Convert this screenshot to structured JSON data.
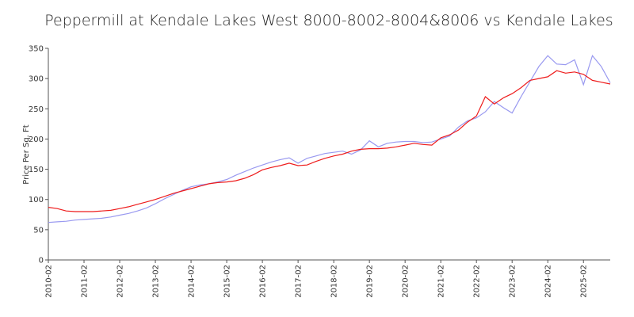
{
  "chart_data": {
    "type": "line",
    "title": "Peppermill at Kendale Lakes West 8000-8002-8004&8006 vs Kendale Lakes",
    "y_label": "Price Per Sq. Ft",
    "x": [
      "2010-02",
      "2010-05",
      "2010-08",
      "2010-11",
      "2011-02",
      "2011-05",
      "2011-08",
      "2011-11",
      "2012-02",
      "2012-05",
      "2012-08",
      "2012-11",
      "2013-02",
      "2013-05",
      "2013-08",
      "2013-11",
      "2014-02",
      "2014-05",
      "2014-08",
      "2014-11",
      "2015-02",
      "2015-05",
      "2015-08",
      "2015-11",
      "2016-02",
      "2016-05",
      "2016-08",
      "2016-11",
      "2017-02",
      "2017-05",
      "2017-08",
      "2017-11",
      "2018-02",
      "2018-05",
      "2018-08",
      "2018-11",
      "2019-02",
      "2019-05",
      "2019-08",
      "2019-11",
      "2020-02",
      "2020-05",
      "2020-08",
      "2020-11",
      "2021-02",
      "2021-05",
      "2021-08",
      "2021-11",
      "2022-02",
      "2022-05",
      "2022-08",
      "2022-11",
      "2023-02",
      "2023-05",
      "2023-08",
      "2023-11",
      "2024-02",
      "2024-05",
      "2024-08",
      "2024-11",
      "2025-02",
      "2025-05",
      "2025-08",
      "2025-11"
    ],
    "series": [
      {
        "color": "#9999f0",
        "values": [
          62,
          63,
          64,
          66,
          67,
          68,
          69,
          71,
          74,
          77,
          81,
          86,
          93,
          101,
          108,
          115,
          121,
          124,
          126,
          129,
          133,
          140,
          146,
          152,
          157,
          162,
          166,
          169,
          160,
          168,
          172,
          176,
          178,
          180,
          175,
          182,
          197,
          187,
          193,
          195,
          196,
          196,
          194,
          195,
          200,
          205,
          220,
          230,
          235,
          245,
          262,
          252,
          243,
          270,
          295,
          320,
          338,
          324,
          323,
          331,
          290,
          338,
          320,
          293
        ]
      },
      {
        "color": "#ee1c1c",
        "values": [
          87,
          85,
          81,
          80,
          80,
          80,
          81,
          82,
          85,
          88,
          92,
          96,
          100,
          105,
          110,
          114,
          118,
          122,
          126,
          128,
          129,
          131,
          135,
          141,
          149,
          153,
          156,
          160,
          156,
          157,
          163,
          168,
          172,
          175,
          180,
          183,
          184,
          184,
          185,
          187,
          190,
          193,
          191,
          190,
          202,
          207,
          215,
          228,
          238,
          270,
          258,
          268,
          275,
          285,
          297,
          300,
          303,
          313,
          309,
          311,
          307,
          297,
          294,
          291
        ]
      }
    ],
    "xlim": [
      "2010-02",
      "2025-11"
    ],
    "xticks": [
      "2010-02",
      "2011-02",
      "2012-02",
      "2013-02",
      "2014-02",
      "2015-02",
      "2016-02",
      "2017-02",
      "2018-02",
      "2019-02",
      "2020-02",
      "2021-02",
      "2022-02",
      "2023-02",
      "2024-02",
      "2025-02"
    ],
    "ylim": [
      0,
      350
    ],
    "yticks": [
      0,
      50,
      100,
      150,
      200,
      250,
      300,
      350
    ]
  }
}
